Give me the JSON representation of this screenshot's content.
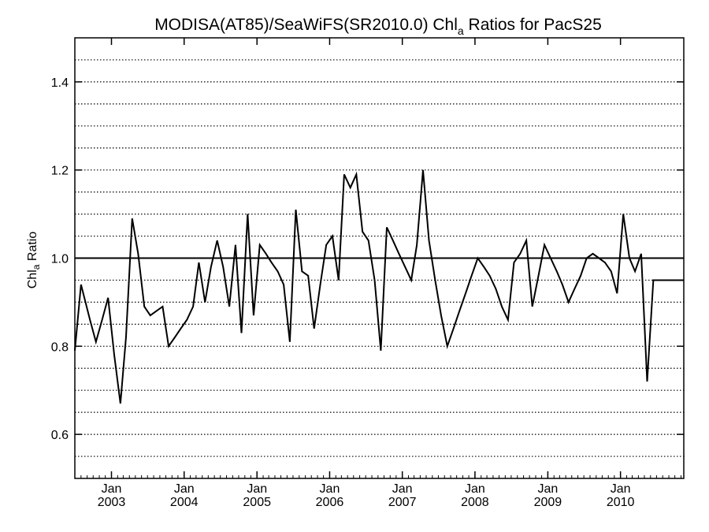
{
  "chart_data": {
    "type": "line",
    "title": {
      "main": "MODISA(AT85)/SeaWiFS(SR2010.0)  Chl",
      "main_subscript": "a",
      "suffix": " Ratios for PacS25"
    },
    "ylabel": {
      "main": "Chl",
      "subscript": "a",
      "suffix": " Ratio"
    },
    "xlim": [
      "2002-07-01",
      "2010-11-15"
    ],
    "ylim": [
      0.5,
      1.5
    ],
    "y_ticks": [
      0.6,
      0.8,
      1.0,
      1.2,
      1.4
    ],
    "y_tick_labels": [
      "0.6",
      "0.8",
      "1.0",
      "1.2",
      "1.4"
    ],
    "y_gridlines": [
      0.55,
      0.6,
      0.65,
      0.7,
      0.75,
      0.8,
      0.85,
      0.9,
      0.95,
      1.05,
      1.1,
      1.15,
      1.2,
      1.25,
      1.3,
      1.35,
      1.4,
      1.45
    ],
    "grid_style": "dotted horizontal",
    "reference_line": 1.0,
    "x_ticks": [
      {
        "date": "2003-01-01",
        "month": "Jan",
        "year": "2003"
      },
      {
        "date": "2004-01-01",
        "month": "Jan",
        "year": "2004"
      },
      {
        "date": "2005-01-01",
        "month": "Jan",
        "year": "2005"
      },
      {
        "date": "2006-01-01",
        "month": "Jan",
        "year": "2006"
      },
      {
        "date": "2007-01-01",
        "month": "Jan",
        "year": "2007"
      },
      {
        "date": "2008-01-01",
        "month": "Jan",
        "year": "2008"
      },
      {
        "date": "2009-01-01",
        "month": "Jan",
        "year": "2009"
      },
      {
        "date": "2010-01-01",
        "month": "Jan",
        "year": "2010"
      }
    ],
    "series": [
      {
        "color": "#000000",
        "x": [
          "2002-07-01",
          "2002-08-01",
          "2002-09-15",
          "2002-10-15",
          "2002-11-15",
          "2002-12-15",
          "2003-01-15",
          "2003-02-15",
          "2003-03-15",
          "2003-04-15",
          "2003-05-15",
          "2003-06-15",
          "2003-07-15",
          "2003-08-15",
          "2003-09-15",
          "2003-10-15",
          "2003-11-15",
          "2003-12-15",
          "2004-01-15",
          "2004-02-15",
          "2004-03-15",
          "2004-04-15",
          "2004-05-15",
          "2004-06-15",
          "2004-07-15",
          "2004-08-15",
          "2004-09-15",
          "2004-10-15",
          "2004-11-15",
          "2004-12-15",
          "2005-01-15",
          "2005-02-15",
          "2005-03-15",
          "2005-04-15",
          "2005-05-15",
          "2005-06-15",
          "2005-07-15",
          "2005-08-15",
          "2005-09-15",
          "2005-10-15",
          "2005-11-15",
          "2005-12-15",
          "2006-01-15",
          "2006-02-15",
          "2006-03-15",
          "2006-04-15",
          "2006-05-15",
          "2006-06-15",
          "2006-07-15",
          "2006-08-15",
          "2006-09-15",
          "2006-10-15",
          "2006-11-15",
          "2006-12-15",
          "2007-01-15",
          "2007-02-15",
          "2007-03-15",
          "2007-04-15",
          "2007-05-15",
          "2007-06-15",
          "2007-07-15",
          "2007-08-15",
          "2007-09-15",
          "2007-10-15",
          "2007-11-15",
          "2007-12-15",
          "2008-01-15",
          "2008-02-15",
          "2008-03-15",
          "2008-04-15",
          "2008-05-15",
          "2008-06-15",
          "2008-07-15",
          "2008-08-15",
          "2008-09-15",
          "2008-10-15",
          "2008-11-15",
          "2008-12-15",
          "2009-01-15",
          "2009-02-15",
          "2009-03-15",
          "2009-04-15",
          "2009-05-15",
          "2009-06-15",
          "2009-07-15",
          "2009-08-15",
          "2009-09-15",
          "2009-10-15",
          "2009-11-15",
          "2009-12-15",
          "2010-01-15",
          "2010-02-15",
          "2010-03-15",
          "2010-04-15",
          "2010-05-15",
          "2010-06-15",
          "2010-07-15",
          "2010-08-15",
          "2010-09-15",
          "2010-10-15",
          "2010-11-15"
        ],
        "values": [
          0.79,
          0.94,
          0.86,
          0.81,
          0.86,
          0.91,
          0.78,
          0.67,
          0.82,
          1.09,
          1.01,
          0.89,
          0.87,
          0.88,
          0.89,
          0.8,
          0.82,
          0.84,
          0.86,
          0.89,
          0.99,
          0.9,
          0.98,
          1.04,
          0.98,
          0.89,
          1.03,
          0.83,
          1.1,
          0.87,
          1.03,
          1.01,
          0.99,
          0.97,
          0.94,
          0.81,
          1.11,
          0.97,
          0.96,
          0.84,
          0.94,
          1.03,
          1.05,
          0.95,
          1.19,
          1.16,
          1.19,
          1.06,
          1.04,
          0.95,
          0.79,
          1.07,
          1.04,
          1.01,
          0.98,
          0.95,
          1.03,
          1.2,
          1.04,
          0.95,
          0.87,
          0.8,
          0.84,
          0.88,
          0.92,
          0.96,
          1.0,
          0.98,
          0.96,
          0.93,
          0.89,
          0.86,
          0.99,
          1.01,
          1.04,
          0.89,
          0.96,
          1.03,
          1.0,
          0.97,
          0.94,
          0.9,
          0.93,
          0.96,
          1.0,
          1.01,
          1.0,
          0.99,
          0.97,
          0.92,
          1.1,
          1.0,
          0.97,
          1.01,
          0.72,
          0.95,
          0.95,
          0.95,
          0.95,
          0.95,
          0.95
        ]
      }
    ]
  }
}
